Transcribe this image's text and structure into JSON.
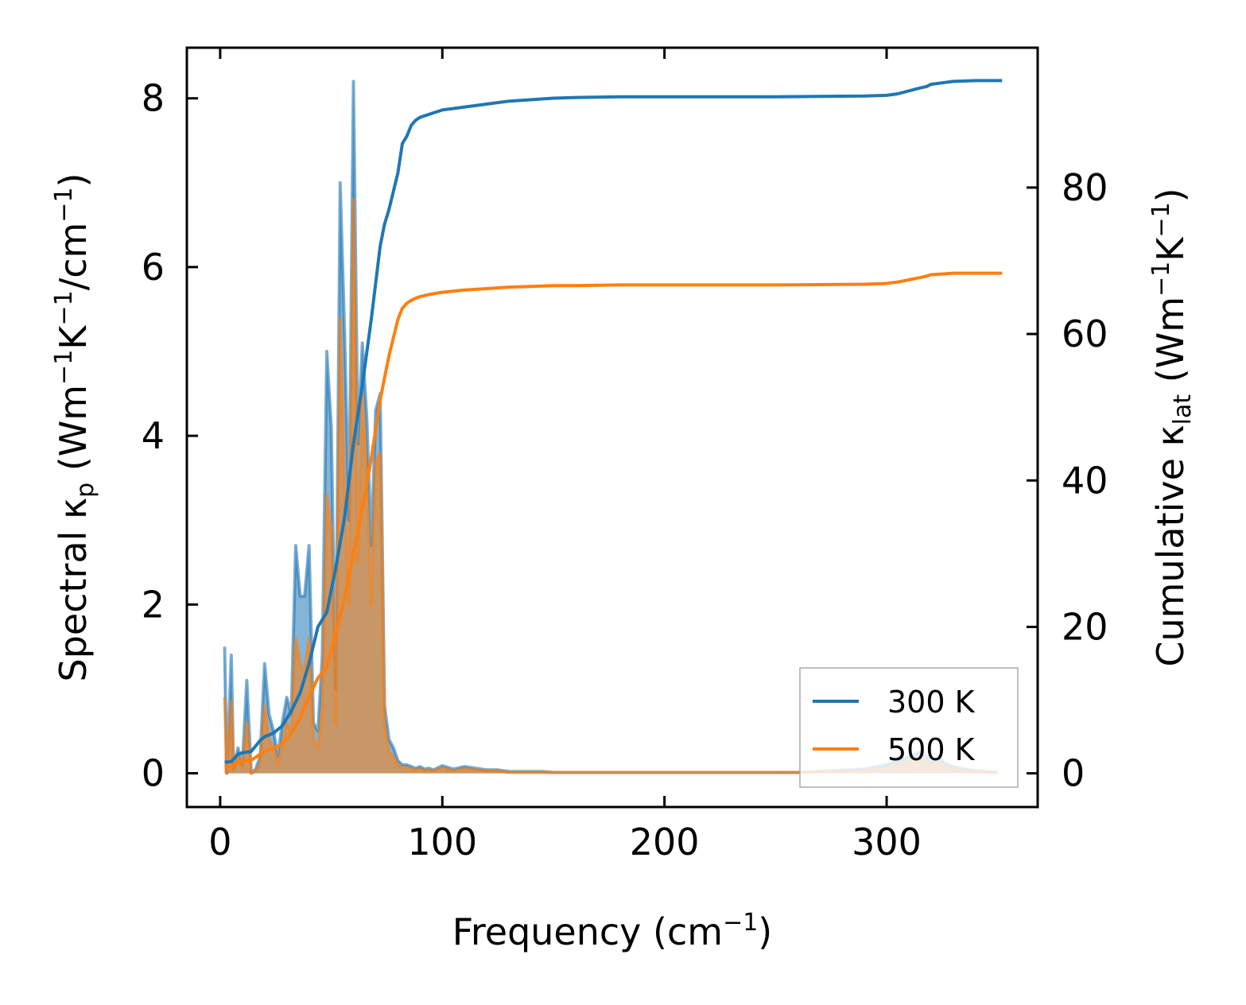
{
  "chart_data": {
    "type": "line",
    "xlabel": "Frequency (cm",
    "xlabel_sup": "−1",
    "xlabel_tail": ")",
    "ylabel_left": {
      "parts": [
        {
          "t": "Spectral κ",
          "s": "n"
        },
        {
          "t": "p",
          "s": "sub"
        },
        {
          "t": " (Wm",
          "s": "n"
        },
        {
          "t": "−1",
          "s": "sup"
        },
        {
          "t": "K",
          "s": "n"
        },
        {
          "t": "−1",
          "s": "sup"
        },
        {
          "t": "/cm",
          "s": "n"
        },
        {
          "t": "−1",
          "s": "sup"
        },
        {
          "t": ")",
          "s": "n"
        }
      ]
    },
    "ylabel_right": {
      "parts": [
        {
          "t": "Cumulative κ",
          "s": "n"
        },
        {
          "t": "lat",
          "s": "sub"
        },
        {
          "t": " (Wm",
          "s": "n"
        },
        {
          "t": "−1",
          "s": "sup"
        },
        {
          "t": "K",
          "s": "n"
        },
        {
          "t": "−1",
          "s": "sup"
        },
        {
          "t": ")",
          "s": "n"
        }
      ]
    },
    "xlim": [
      -15,
      368
    ],
    "ylim_left": [
      -0.4,
      8.6
    ],
    "ylim_right": [
      -4.6,
      99.1
    ],
    "xticks": [
      0,
      100,
      200,
      300
    ],
    "yticks_left": [
      0,
      2,
      4,
      6,
      8
    ],
    "yticks_right": [
      0,
      20,
      40,
      60,
      80
    ],
    "grid": false,
    "legend_position": "lower-right",
    "colors": {
      "series_300": "#1f77b4",
      "series_500": "#ff7f0e",
      "fill_blend": "#c49a6c"
    },
    "spectral": {
      "x": [
        2,
        3,
        5,
        6,
        8,
        10,
        12,
        14,
        16,
        18,
        20,
        22,
        24,
        26,
        28,
        30,
        32,
        34,
        36,
        38,
        40,
        42,
        44,
        46,
        48,
        50,
        52,
        54,
        56,
        58,
        60,
        62,
        64,
        66,
        68,
        70,
        72,
        74,
        76,
        78,
        80,
        82,
        84,
        86,
        88,
        90,
        92,
        94,
        96,
        100,
        105,
        110,
        115,
        120,
        125,
        130,
        135,
        140,
        145,
        150,
        160,
        170,
        180,
        200,
        230,
        260,
        290,
        300,
        305,
        310,
        315,
        318,
        320,
        323,
        326,
        330,
        335,
        340,
        345,
        350
      ],
      "series": [
        {
          "name": "300 K",
          "values": [
            1.5,
            0.0,
            1.4,
            0.05,
            0.3,
            0.1,
            1.1,
            0.0,
            0.05,
            0.2,
            1.3,
            0.7,
            0.5,
            0.2,
            0.6,
            0.9,
            0.7,
            2.7,
            2.1,
            2.1,
            2.7,
            0.6,
            0.5,
            1.4,
            5.0,
            4.1,
            1.0,
            7.0,
            5.2,
            3.0,
            8.2,
            3.9,
            5.1,
            4.2,
            2.7,
            4.3,
            4.5,
            0.8,
            0.4,
            0.3,
            0.15,
            0.1,
            0.1,
            0.08,
            0.06,
            0.08,
            0.05,
            0.06,
            0.04,
            0.09,
            0.05,
            0.08,
            0.06,
            0.04,
            0.04,
            0.02,
            0.02,
            0.02,
            0.02,
            0.01,
            0.01,
            0.01,
            0.01,
            0.01,
            0.01,
            0.01,
            0.05,
            0.1,
            0.15,
            0.2,
            0.25,
            0.2,
            0.12,
            0.2,
            0.12,
            0.08,
            0.05,
            0.03,
            0.02,
            0.01
          ]
        },
        {
          "name": "500 K",
          "values": [
            0.9,
            0.0,
            0.85,
            0.03,
            0.2,
            0.06,
            0.6,
            0.0,
            0.03,
            0.1,
            0.8,
            0.4,
            0.3,
            0.1,
            0.35,
            0.6,
            0.5,
            1.6,
            1.3,
            1.2,
            1.6,
            0.4,
            0.3,
            0.8,
            3.3,
            2.9,
            0.6,
            5.4,
            3.3,
            2.0,
            6.8,
            2.5,
            4.5,
            3.5,
            2.0,
            3.7,
            3.8,
            0.6,
            0.25,
            0.2,
            0.1,
            0.07,
            0.07,
            0.05,
            0.04,
            0.05,
            0.03,
            0.04,
            0.03,
            0.06,
            0.03,
            0.05,
            0.04,
            0.03,
            0.03,
            0.01,
            0.01,
            0.01,
            0.01,
            0.01,
            0.01,
            0.01,
            0.01,
            0.01,
            0.01,
            0.01,
            0.03,
            0.06,
            0.1,
            0.14,
            0.18,
            0.14,
            0.08,
            0.14,
            0.08,
            0.05,
            0.03,
            0.02,
            0.01,
            0.01
          ]
        }
      ]
    },
    "cumulative": {
      "x": [
        2,
        5,
        8,
        10,
        14,
        18,
        20,
        24,
        28,
        32,
        36,
        40,
        44,
        48,
        52,
        56,
        60,
        64,
        68,
        72,
        74,
        76,
        80,
        82,
        84,
        86,
        88,
        90,
        94,
        98,
        100,
        110,
        120,
        130,
        140,
        150,
        160,
        180,
        200,
        250,
        290,
        300,
        305,
        310,
        315,
        318,
        320,
        325,
        330,
        340,
        352
      ],
      "series": [
        {
          "name": "300 K",
          "values": [
            1.5,
            1.6,
            2.6,
            2.8,
            3.0,
            4.5,
            5.0,
            5.5,
            6.5,
            8.5,
            11.0,
            15.0,
            20.0,
            22.0,
            28.0,
            35.0,
            45.0,
            53.0,
            62.0,
            72.0,
            75.0,
            77.0,
            82.0,
            86.0,
            87.0,
            88.5,
            89.2,
            89.6,
            90.0,
            90.4,
            90.6,
            91.0,
            91.4,
            91.8,
            92.0,
            92.2,
            92.3,
            92.4,
            92.4,
            92.4,
            92.5,
            92.6,
            92.8,
            93.2,
            93.6,
            93.8,
            94.1,
            94.3,
            94.5,
            94.6,
            94.6
          ]
        },
        {
          "name": "500 K",
          "values": [
            0.8,
            0.9,
            1.5,
            1.6,
            1.8,
            2.6,
            3.0,
            3.4,
            4.0,
            5.5,
            7.5,
            10.5,
            13.0,
            14.5,
            19.0,
            24.0,
            30.0,
            36.0,
            43.0,
            51.0,
            54.0,
            57.0,
            62.0,
            63.5,
            64.2,
            64.6,
            64.9,
            65.1,
            65.4,
            65.6,
            65.7,
            66.0,
            66.2,
            66.4,
            66.5,
            66.6,
            66.6,
            66.7,
            66.7,
            66.7,
            66.8,
            66.9,
            67.1,
            67.4,
            67.7,
            67.9,
            68.1,
            68.2,
            68.3,
            68.3,
            68.3
          ]
        }
      ]
    }
  }
}
